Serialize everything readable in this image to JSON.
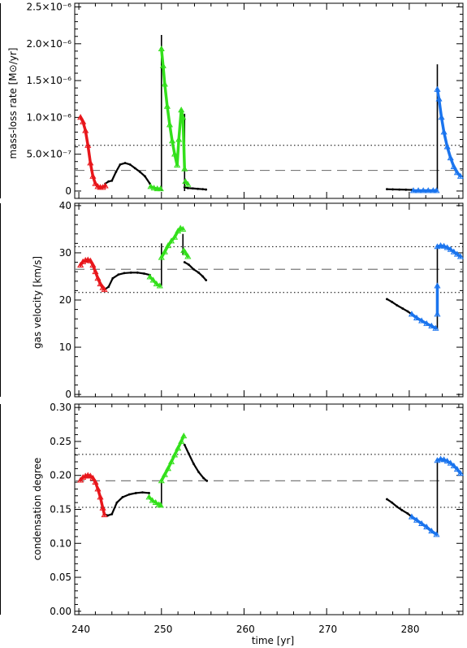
{
  "colors": {
    "red": "#e8161b",
    "green": "#33e01b",
    "blue": "#1a74ee",
    "black": "#000000",
    "dashed": "#7a7a7a"
  },
  "xaxis": {
    "label": "time [yr]",
    "xlim": [
      239.5,
      286.5
    ],
    "ticks": [
      "240",
      "250",
      "260",
      "270",
      "280"
    ],
    "tick_values": [
      240,
      250,
      260,
      270,
      280
    ]
  },
  "chart_data": [
    {
      "type": "scatter",
      "ylabel": "mass-loss rate [M⊙/yr]",
      "ylim": [
        -1e-07,
        2.55e-06
      ],
      "yticks": [
        0,
        5e-07,
        1e-06,
        1.5e-06,
        2e-06,
        2.5e-06
      ],
      "ytick_labels": [
        "0",
        "5.0×10⁻⁷",
        "1.0×10⁻⁶",
        "1.5×10⁻⁶",
        "2.0×10⁻⁶",
        "2.5×10⁻⁶"
      ],
      "hlines": {
        "mean": 2.8e-07,
        "upper": 6.2e-07
      },
      "series": [
        {
          "color": "black",
          "marker": "dot",
          "x": [
            243.2,
            243.6,
            244.0,
            244.5,
            245.0,
            245.6,
            246.2,
            246.8,
            247.4,
            248.0,
            248.6
          ],
          "y": [
            1e-07,
            1.3e-07,
            1.4e-07,
            2.6e-07,
            3.6e-07,
            3.8e-07,
            3.6e-07,
            3.1e-07,
            2.6e-07,
            2e-07,
            1e-07
          ]
        },
        {
          "color": "black",
          "marker": "dot",
          "x": [
            252.8,
            253.2,
            253.8,
            254.4,
            255.0,
            255.4
          ],
          "y": [
            5e-08,
            4e-08,
            3.5e-08,
            3e-08,
            2.5e-08,
            2e-08
          ]
        },
        {
          "color": "black",
          "marker": "dot",
          "x": [
            277.3,
            278.0,
            278.8,
            279.6,
            280.3
          ],
          "y": [
            2.5e-08,
            2.2e-08,
            2e-08,
            1.8e-08,
            1.5e-08
          ]
        },
        {
          "color": "black",
          "marker": "line",
          "x": [
            250.0,
            250.0
          ],
          "y": [
            0,
            2.12e-06
          ]
        },
        {
          "color": "black",
          "marker": "line",
          "x": [
            252.8,
            252.8
          ],
          "y": [
            0,
            1.05e-06
          ]
        },
        {
          "color": "black",
          "marker": "line",
          "x": [
            283.4,
            283.4
          ],
          "y": [
            0,
            1.72e-06
          ]
        },
        {
          "color": "red",
          "marker": "triangle",
          "x": [
            240.2,
            240.5,
            240.8,
            241.1,
            241.4,
            241.7,
            242.0,
            242.3,
            242.6,
            242.9,
            243.2
          ],
          "y": [
            1e-06,
            9.4e-07,
            8.2e-07,
            6.2e-07,
            3.8e-07,
            2e-07,
            1e-07,
            6e-08,
            5e-08,
            5e-08,
            7e-08
          ]
        },
        {
          "color": "green",
          "marker": "triangle",
          "x": [
            248.7,
            249.1,
            249.5,
            249.9
          ],
          "y": [
            6e-08,
            4e-08,
            3e-08,
            3e-08
          ]
        },
        {
          "color": "green",
          "marker": "triangle",
          "x": [
            250.0,
            250.2,
            250.4,
            250.7,
            251.0,
            251.3,
            251.6,
            251.9,
            252.1,
            252.4,
            252.6,
            252.8
          ],
          "y": [
            1.93e-06,
            1.7e-06,
            1.45e-06,
            1.15e-06,
            9e-07,
            6.8e-07,
            5e-07,
            3.5e-07,
            7e-07,
            1.1e-06,
            1e-06,
            3e-07
          ]
        },
        {
          "color": "green",
          "marker": "triangle",
          "x": [
            252.9,
            253.2
          ],
          "y": [
            1.3e-07,
            9e-08
          ]
        },
        {
          "color": "blue",
          "marker": "triangle",
          "x": [
            280.5,
            281.1,
            281.7,
            282.3,
            282.9,
            283.3
          ],
          "y": [
            5e-09,
            5e-09,
            5e-09,
            5e-09,
            5e-09,
            5e-09
          ]
        },
        {
          "color": "blue",
          "marker": "triangle",
          "x": [
            283.4,
            283.6,
            283.9,
            284.2,
            284.6,
            285.0,
            285.4,
            285.8,
            286.2
          ],
          "y": [
            1.38e-06,
            1.25e-06,
            1e-06,
            8e-07,
            6e-07,
            4.5e-07,
            3.3e-07,
            2.5e-07,
            2e-07
          ]
        }
      ]
    },
    {
      "type": "scatter",
      "ylabel": "gas velocity [km/s]",
      "ylim": [
        -0.5,
        40.5
      ],
      "yticks": [
        0,
        10,
        20,
        30,
        40
      ],
      "ytick_labels": [
        "0",
        "10",
        "20",
        "30",
        "40"
      ],
      "hlines": {
        "mean": 26.5,
        "upper": 31.3,
        "lower": 21.6
      },
      "series": [
        {
          "color": "black",
          "marker": "dot",
          "x": [
            243.1,
            243.6,
            244.1,
            244.8,
            245.5,
            246.3,
            247.1,
            247.9,
            248.6
          ],
          "y": [
            22.2,
            22.8,
            24.6,
            25.4,
            25.7,
            25.8,
            25.8,
            25.6,
            25.3
          ]
        },
        {
          "color": "black",
          "marker": "dot",
          "x": [
            252.8,
            253.3,
            253.9,
            254.5,
            255.0,
            255.4
          ],
          "y": [
            28.0,
            27.5,
            26.5,
            25.8,
            25.0,
            24.2
          ]
        },
        {
          "color": "black",
          "marker": "dot",
          "x": [
            277.3,
            277.9,
            278.5,
            279.2,
            279.8,
            280.3
          ],
          "y": [
            20.2,
            19.6,
            18.9,
            18.2,
            17.6,
            17.0
          ]
        },
        {
          "color": "black",
          "marker": "line",
          "x": [
            250.0,
            250.0
          ],
          "y": [
            23.0,
            32.0
          ]
        },
        {
          "color": "black",
          "marker": "line",
          "x": [
            252.6,
            252.6
          ],
          "y": [
            29.5,
            34.0
          ]
        },
        {
          "color": "black",
          "marker": "line",
          "x": [
            283.4,
            283.4
          ],
          "y": [
            13.8,
            31.5
          ]
        },
        {
          "color": "red",
          "marker": "triangle",
          "x": [
            240.2,
            240.5,
            240.8,
            241.1,
            241.4,
            241.7,
            242.0,
            242.3,
            242.6,
            242.9,
            243.1
          ],
          "y": [
            27.4,
            28.1,
            28.4,
            28.5,
            28.3,
            27.4,
            26.0,
            24.6,
            23.4,
            22.6,
            22.2
          ]
        },
        {
          "color": "green",
          "marker": "triangle",
          "x": [
            248.6,
            249.0,
            249.4,
            249.8
          ],
          "y": [
            24.9,
            24.2,
            23.4,
            23.0
          ]
        },
        {
          "color": "green",
          "marker": "triangle",
          "x": [
            250.0,
            250.4,
            250.8,
            251.2,
            251.6,
            252.0,
            252.3,
            252.6
          ],
          "y": [
            29.0,
            30.2,
            31.5,
            32.5,
            33.3,
            34.6,
            35.2,
            35.0
          ]
        },
        {
          "color": "green",
          "marker": "triangle",
          "x": [
            252.7,
            252.9,
            253.2
          ],
          "y": [
            30.5,
            30.0,
            29.2
          ]
        },
        {
          "color": "blue",
          "marker": "triangle",
          "x": [
            280.3,
            280.9,
            281.5,
            282.1,
            282.7,
            283.2
          ],
          "y": [
            17.0,
            16.2,
            15.6,
            15.0,
            14.5,
            14.0
          ]
        },
        {
          "color": "blue",
          "marker": "triangle",
          "x": [
            283.4,
            283.8,
            284.2,
            284.6,
            285.0,
            285.4,
            285.8,
            286.2
          ],
          "y": [
            31.3,
            31.5,
            31.4,
            31.1,
            30.7,
            30.2,
            29.7,
            29.2
          ]
        },
        {
          "color": "blue",
          "marker": "triangle",
          "x": [
            283.4,
            283.4
          ],
          "y": [
            17.0,
            23.0
          ]
        }
      ]
    },
    {
      "type": "scatter",
      "xlabel": "time [yr]",
      "ylabel": "condensation degree",
      "ylim": [
        -0.005,
        0.305
      ],
      "yticks": [
        0,
        0.05,
        0.1,
        0.15,
        0.2,
        0.25,
        0.3
      ],
      "ytick_labels": [
        "0.00",
        "0.05",
        "0.10",
        "0.15",
        "0.20",
        "0.25",
        "0.30"
      ],
      "hlines": {
        "mean": 0.192,
        "upper": 0.231,
        "lower": 0.153
      },
      "series": [
        {
          "color": "black",
          "marker": "dot",
          "x": [
            243.1,
            243.5,
            244.0,
            244.6,
            245.3,
            246.1,
            246.9,
            247.7,
            248.5
          ],
          "y": [
            0.143,
            0.141,
            0.143,
            0.16,
            0.168,
            0.172,
            0.174,
            0.175,
            0.174
          ]
        },
        {
          "color": "black",
          "marker": "dot",
          "x": [
            252.8,
            253.3,
            253.9,
            254.5,
            255.1,
            255.5
          ],
          "y": [
            0.245,
            0.232,
            0.217,
            0.205,
            0.196,
            0.192
          ]
        },
        {
          "color": "black",
          "marker": "dot",
          "x": [
            277.3,
            277.9,
            278.5,
            279.1,
            279.8,
            280.3
          ],
          "y": [
            0.165,
            0.16,
            0.154,
            0.149,
            0.144,
            0.139
          ]
        },
        {
          "color": "black",
          "marker": "line",
          "x": [
            250.0,
            250.0
          ],
          "y": [
            0.155,
            0.192
          ]
        },
        {
          "color": "black",
          "marker": "line",
          "x": [
            283.4,
            283.4
          ],
          "y": [
            0.112,
            0.222
          ]
        },
        {
          "color": "red",
          "marker": "triangle",
          "x": [
            240.2,
            240.5,
            240.8,
            241.1,
            241.4,
            241.7,
            242.0,
            242.3,
            242.6,
            242.9,
            243.1
          ],
          "y": [
            0.193,
            0.197,
            0.199,
            0.2,
            0.199,
            0.196,
            0.19,
            0.18,
            0.168,
            0.152,
            0.142
          ]
        },
        {
          "color": "green",
          "marker": "triangle",
          "x": [
            248.5,
            248.9,
            249.3,
            249.7,
            249.9
          ],
          "y": [
            0.168,
            0.163,
            0.16,
            0.157,
            0.156
          ]
        },
        {
          "color": "green",
          "marker": "triangle",
          "x": [
            250.0,
            250.4,
            250.8,
            251.2,
            251.6,
            252.0,
            252.4,
            252.7
          ],
          "y": [
            0.192,
            0.201,
            0.21,
            0.22,
            0.23,
            0.24,
            0.25,
            0.258
          ]
        },
        {
          "color": "blue",
          "marker": "triangle",
          "x": [
            280.3,
            280.9,
            281.5,
            282.1,
            282.7,
            283.3
          ],
          "y": [
            0.139,
            0.134,
            0.129,
            0.124,
            0.118,
            0.113
          ]
        },
        {
          "color": "blue",
          "marker": "triangle",
          "x": [
            283.4,
            283.8,
            284.2,
            284.6,
            285.0,
            285.4,
            285.8,
            286.2
          ],
          "y": [
            0.222,
            0.224,
            0.223,
            0.221,
            0.218,
            0.214,
            0.209,
            0.203
          ]
        }
      ]
    }
  ]
}
